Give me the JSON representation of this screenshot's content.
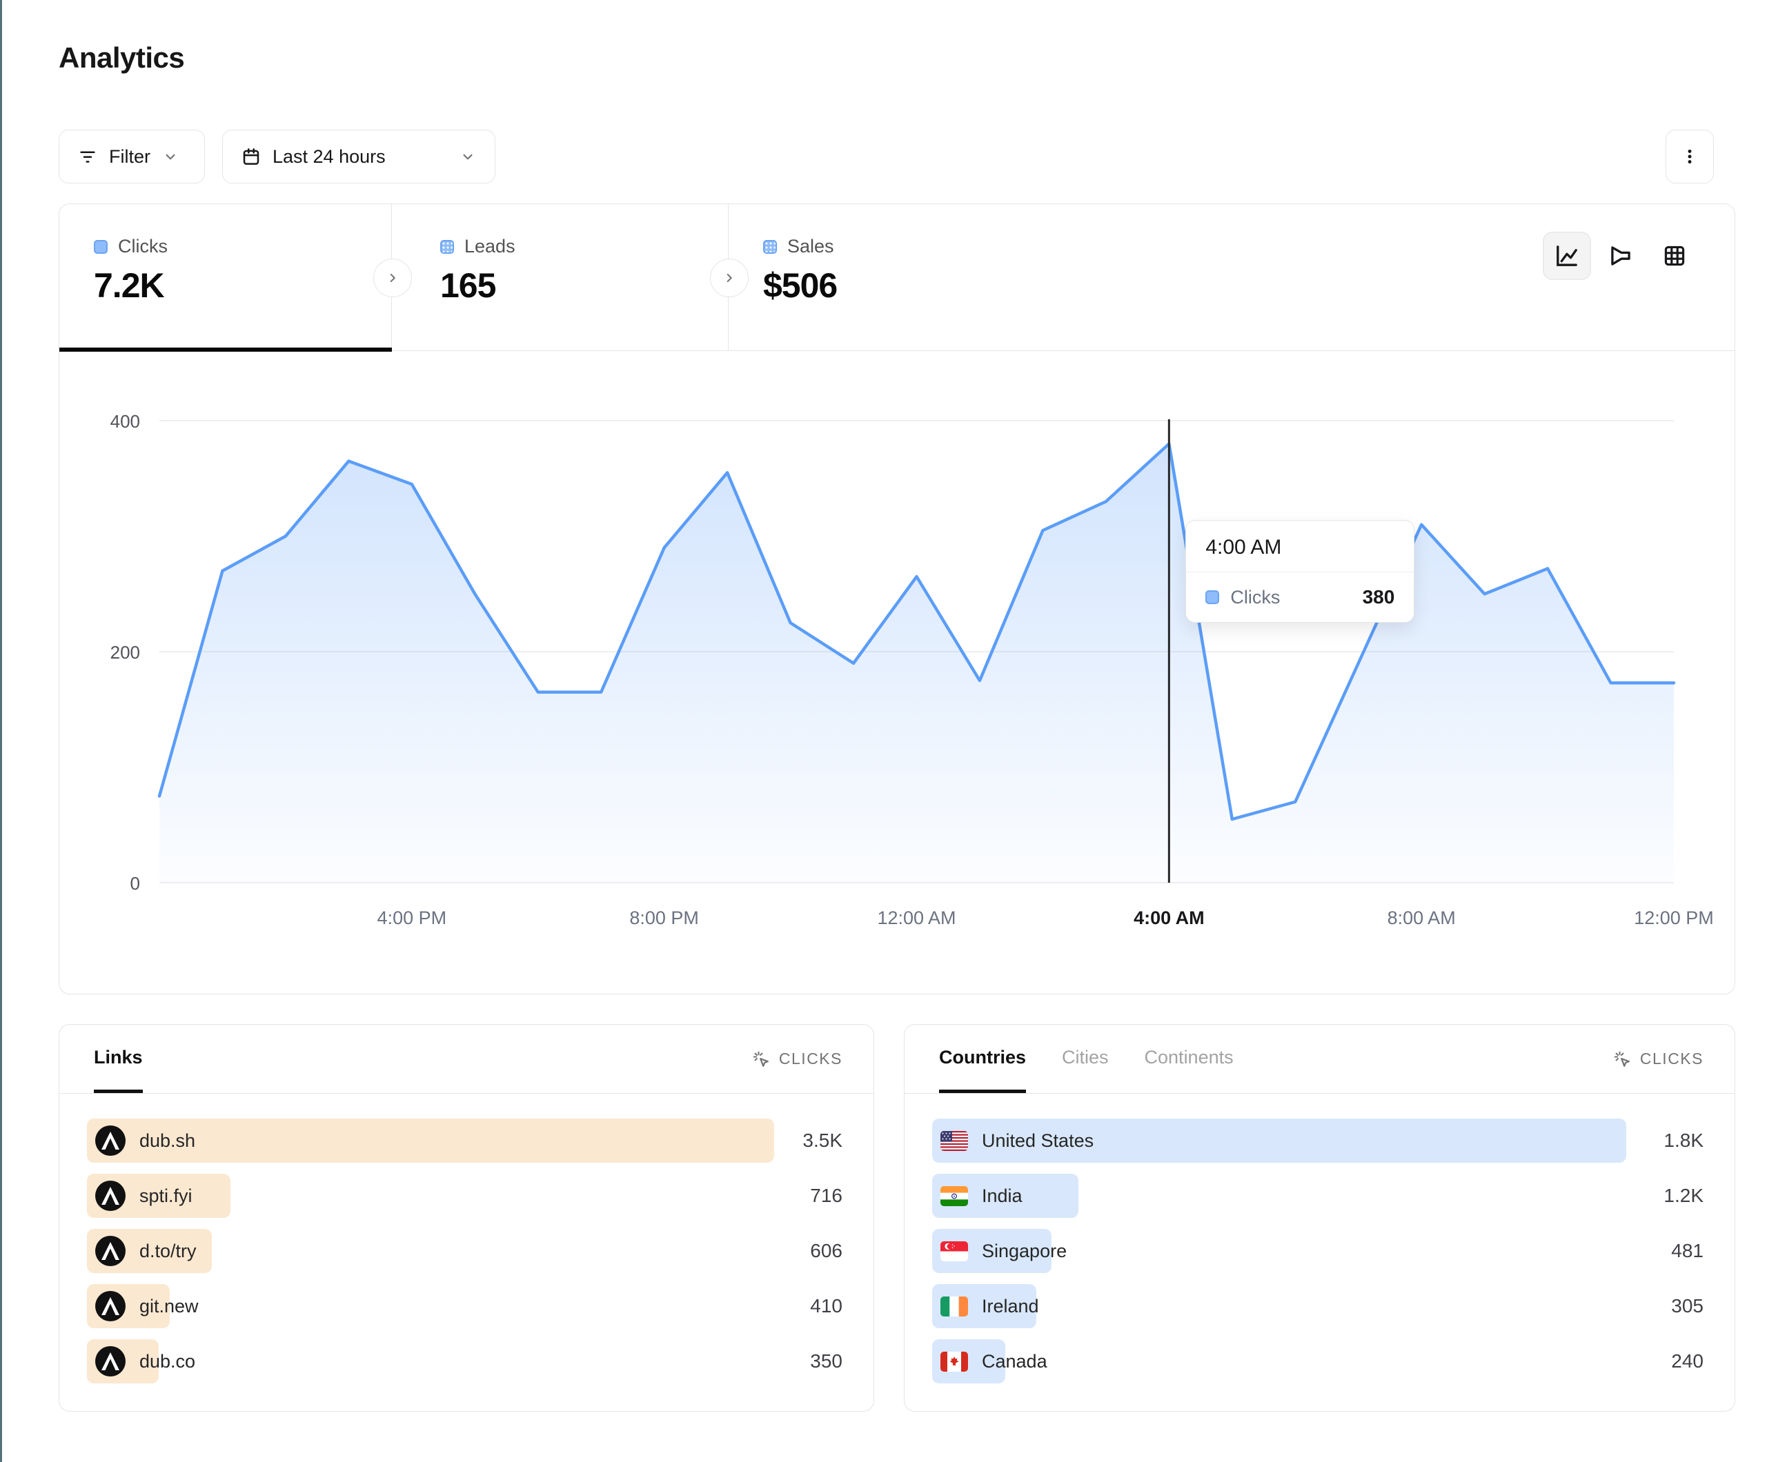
{
  "page": {
    "title": "Analytics"
  },
  "toolbar": {
    "filter_label": "Filter",
    "date_range_label": "Last 24 hours",
    "more_icon": "kebab-menu",
    "filter_icon": "filter-lines",
    "date_icon": "calendar"
  },
  "stats": {
    "tabs": [
      {
        "label": "Clicks",
        "value": "7.2K",
        "active": true
      },
      {
        "label": "Leads",
        "value": "165",
        "active": false
      },
      {
        "label": "Sales",
        "value": "$506",
        "active": false
      }
    ]
  },
  "chart_toggles": [
    {
      "icon": "line-chart",
      "selected": true
    },
    {
      "icon": "funnel-chart",
      "selected": false
    },
    {
      "icon": "table-grid",
      "selected": false
    }
  ],
  "chart_data": {
    "type": "area",
    "series_name": "Clicks",
    "line_color": "#5b9df8",
    "x": [
      "12:00 PM",
      "1:00 PM",
      "2:00 PM",
      "3:00 PM",
      "4:00 PM",
      "5:00 PM",
      "6:00 PM",
      "7:00 PM",
      "8:00 PM",
      "9:00 PM",
      "10:00 PM",
      "11:00 PM",
      "12:00 AM",
      "1:00 AM",
      "2:00 AM",
      "3:00 AM",
      "4:00 AM",
      "5:00 AM",
      "6:00 AM",
      "7:00 AM",
      "8:00 AM",
      "9:00 AM",
      "10:00 AM",
      "11:00 AM",
      "12:00 PM"
    ],
    "values": [
      75,
      270,
      300,
      365,
      345,
      250,
      165,
      165,
      290,
      355,
      225,
      190,
      265,
      175,
      305,
      330,
      380,
      55,
      70,
      190,
      310,
      250,
      272,
      173,
      173
    ],
    "ylim": [
      0,
      400
    ],
    "y_ticks": [
      0,
      200,
      400
    ],
    "x_tick_indices": [
      4,
      8,
      12,
      16,
      20,
      24
    ],
    "x_tick_labels": [
      "4:00 PM",
      "8:00 PM",
      "12:00 AM",
      "4:00 AM",
      "8:00 AM",
      "12:00 PM"
    ],
    "grid": true,
    "crosshair_index": 16,
    "tooltip": {
      "time": "4:00 AM",
      "series": "Clicks",
      "value": "380"
    }
  },
  "links_panel": {
    "tab": "Links",
    "metric_label": "CLICKS",
    "rows": [
      {
        "label": "dub.sh",
        "value": "3.5K",
        "bar_pct": 91
      },
      {
        "label": "spti.fyi",
        "value": "716",
        "bar_pct": 19
      },
      {
        "label": "d.to/try",
        "value": "606",
        "bar_pct": 16.5
      },
      {
        "label": "git.new",
        "value": "410",
        "bar_pct": 11
      },
      {
        "label": "dub.co",
        "value": "350",
        "bar_pct": 9.5
      }
    ]
  },
  "geo_panel": {
    "tabs": [
      {
        "label": "Countries",
        "active": true
      },
      {
        "label": "Cities",
        "active": false
      },
      {
        "label": "Continents",
        "active": false
      }
    ],
    "metric_label": "CLICKS",
    "rows": [
      {
        "label": "United States",
        "value": "1.8K",
        "flag": "us",
        "bar_pct": 90
      },
      {
        "label": "India",
        "value": "1.2K",
        "flag": "in",
        "bar_pct": 19
      },
      {
        "label": "Singapore",
        "value": "481",
        "flag": "sg",
        "bar_pct": 15.5
      },
      {
        "label": "Ireland",
        "value": "305",
        "flag": "ie",
        "bar_pct": 13.5
      },
      {
        "label": "Canada",
        "value": "240",
        "flag": "ca",
        "bar_pct": 9.5
      }
    ]
  },
  "colors": {
    "accent_blue": "#5b9df8",
    "area_fill": "#e9f1fd",
    "links_bar": "#fbe8d0",
    "geo_bar": "#d8e7fc",
    "border": "#e5e5e5",
    "crosshair": "#27272a",
    "edge_line": "#54707d"
  }
}
